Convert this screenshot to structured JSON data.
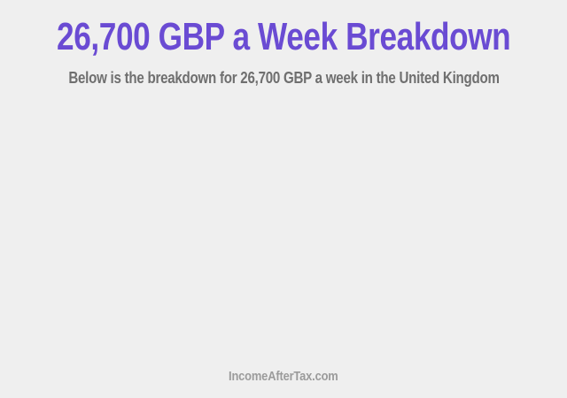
{
  "page": {
    "background_color": "#efefef",
    "title": "26,700 GBP a Week Breakdown",
    "title_color": "#6a4bd3",
    "subtitle": "Below is the breakdown for 26,700 GBP a week in the United Kingdom",
    "subtitle_color": "#6f6f6f",
    "footer": "IncomeAfterTax.com",
    "footer_color": "#9b9b9b"
  },
  "chart_data": {
    "type": "none",
    "title": "26,700 GBP a Week Breakdown",
    "subtitle": "Below is the breakdown for 26,700 GBP a week in the United Kingdom",
    "categories": [],
    "values": [],
    "notes": "Plot area is blank in the screenshot; no data points, axes, or legend are rendered."
  }
}
